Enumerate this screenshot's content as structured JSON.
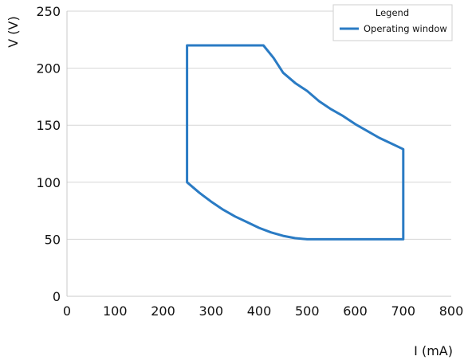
{
  "chart_data": {
    "type": "line",
    "xlabel": "I (mA)",
    "ylabel": "V (V)",
    "xlim": [
      0,
      800
    ],
    "ylim": [
      0,
      250
    ],
    "x_ticks": [
      0,
      100,
      200,
      300,
      400,
      500,
      600,
      700,
      800
    ],
    "y_ticks": [
      0,
      50,
      100,
      150,
      200,
      250
    ],
    "grid": "horizontal",
    "legend": {
      "title": "Legend",
      "position": "top-right"
    },
    "series": [
      {
        "name": "Operating window",
        "color": "#2a7bc4",
        "points": [
          [
            250,
            220
          ],
          [
            409,
            220
          ],
          [
            430,
            209
          ],
          [
            450,
            196
          ],
          [
            475,
            187
          ],
          [
            500,
            180
          ],
          [
            525,
            171
          ],
          [
            550,
            164
          ],
          [
            575,
            158
          ],
          [
            600,
            151
          ],
          [
            625,
            145
          ],
          [
            650,
            139
          ],
          [
            675,
            134
          ],
          [
            700,
            129
          ],
          [
            700,
            50
          ],
          [
            500,
            50
          ],
          [
            475,
            51
          ],
          [
            450,
            53
          ],
          [
            425,
            56
          ],
          [
            400,
            60
          ],
          [
            375,
            65
          ],
          [
            350,
            70
          ],
          [
            325,
            76
          ],
          [
            300,
            83
          ],
          [
            275,
            91
          ],
          [
            250,
            100
          ],
          [
            250,
            220
          ]
        ]
      }
    ]
  }
}
